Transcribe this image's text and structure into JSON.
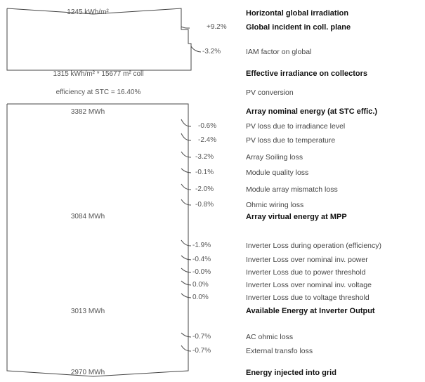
{
  "values": {
    "horizontal_irradiation": "1245 kWh/m²",
    "effective_irradiance": "1315 kWh/m² * 15677 m² coll",
    "stc_efficiency": "efficiency at STC = 16.40%",
    "array_nominal": "3382 MWh",
    "array_virtual": "3084 MWh",
    "inverter_output": "3013 MWh",
    "grid_injected": "2970 MWh"
  },
  "losses": [
    {
      "pct": "+9.2%",
      "label": "Global incident in coll. plane",
      "bold": true
    },
    {
      "pct": "-3.2%",
      "label": "IAM factor on global",
      "bold": false
    },
    {
      "pct": "-0.6%",
      "label": "PV loss due to irradiance level",
      "bold": false
    },
    {
      "pct": "-2.4%",
      "label": "PV loss due to temperature",
      "bold": false
    },
    {
      "pct": "-3.2%",
      "label": "Array Soiling loss",
      "bold": false
    },
    {
      "pct": "-0.1%",
      "label": "Module quality loss",
      "bold": false
    },
    {
      "pct": "-2.0%",
      "label": "Module array mismatch loss",
      "bold": false
    },
    {
      "pct": "-0.8%",
      "label": "Ohmic wiring loss",
      "bold": false
    },
    {
      "pct": "-1.9%",
      "label": "Inverter Loss during operation (efficiency)",
      "bold": false
    },
    {
      "pct": "-0.4%",
      "label": "Inverter Loss over nominal inv. power",
      "bold": false
    },
    {
      "pct": "-0.0%",
      "label": "Inverter Loss due to power threshold",
      "bold": false
    },
    {
      "pct": "0.0%",
      "label": "Inverter Loss over nominal inv. voltage",
      "bold": false
    },
    {
      "pct": "0.0%",
      "label": "Inverter Loss due to voltage threshold",
      "bold": false
    },
    {
      "pct": "-0.7%",
      "label": "AC ohmic loss",
      "bold": false
    },
    {
      "pct": "-0.7%",
      "label": "External transfo loss",
      "bold": false
    }
  ],
  "stage_labels": {
    "horizontal": "Horizontal global irradiation",
    "effective": "Effective irradiance on collectors",
    "pv_conversion": "PV conversion",
    "array_nominal": "Array nominal energy (at STC effic.)",
    "array_virtual": "Array virtual energy at MPP",
    "inverter_output": "Available Energy at Inverter Output",
    "grid": "Energy injected into grid"
  }
}
